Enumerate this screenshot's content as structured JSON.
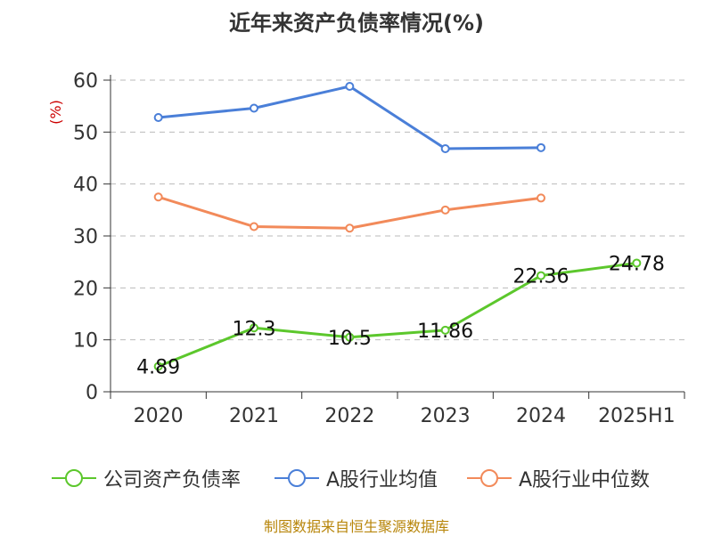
{
  "chart_data": {
    "type": "line",
    "title": "近年来资产负债率情况(%)",
    "ylabel": "(%)",
    "xlabel": "",
    "categories": [
      "2020",
      "2021",
      "2022",
      "2023",
      "2024",
      "2025H1"
    ],
    "ylim": [
      0,
      60
    ],
    "yticks": [
      0,
      10,
      20,
      30,
      40,
      50,
      60
    ],
    "grid": true,
    "legend_position": "bottom",
    "series": [
      {
        "name": "公司资产负债率",
        "color": "#5cc72c",
        "values": [
          4.89,
          12.3,
          10.5,
          11.86,
          22.36,
          24.78
        ],
        "labels": [
          "4.89",
          "12.3",
          "10.5",
          "11.86",
          "22.36",
          "24.78"
        ]
      },
      {
        "name": "A股行业均值",
        "color": "#4a7fd8",
        "values": [
          52.8,
          54.6,
          58.8,
          46.8,
          47.0,
          null
        ]
      },
      {
        "name": "A股行业中位数",
        "color": "#f28a5a",
        "values": [
          37.5,
          31.8,
          31.5,
          35.0,
          37.3,
          null
        ]
      }
    ]
  },
  "source": "制图数据来自恒生聚源数据库"
}
